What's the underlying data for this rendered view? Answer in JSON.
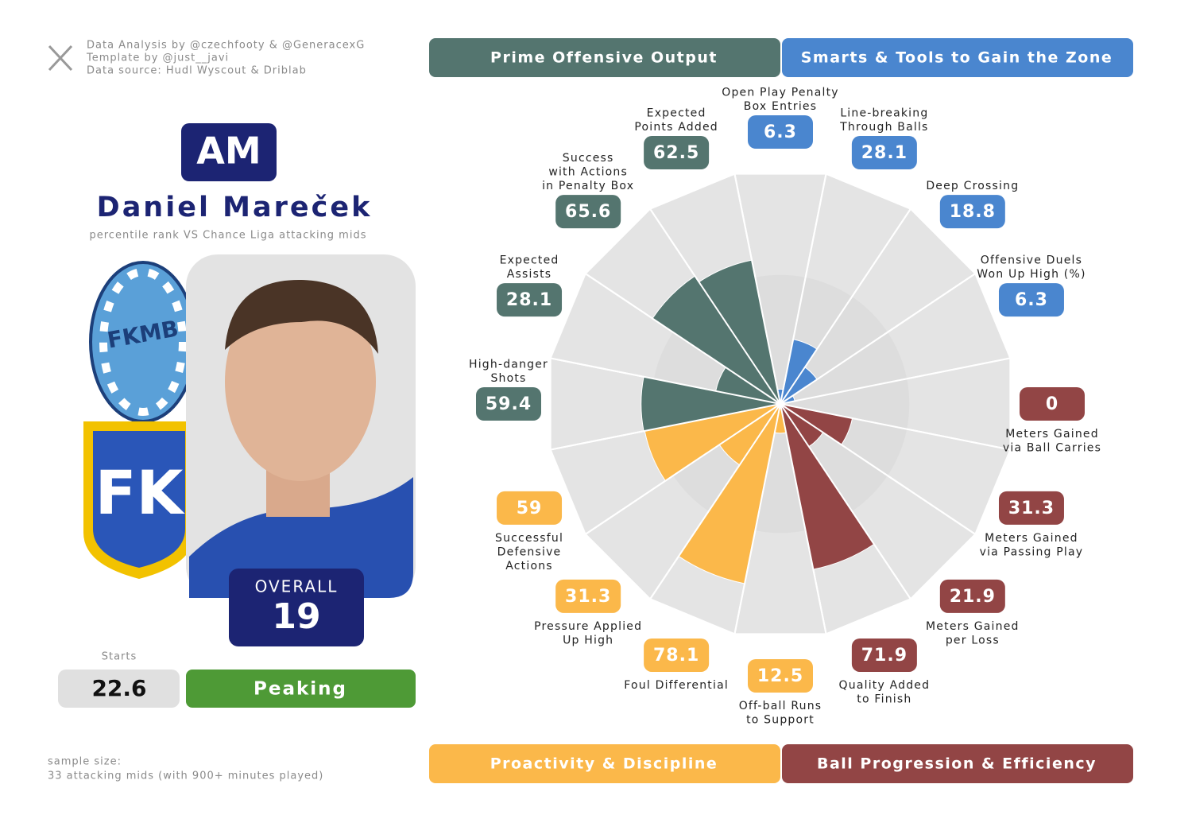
{
  "credits": [
    "Data Analysis by @czechfooty & @GeneracexG",
    "Template by @just__javi",
    "Data source: Hudl Wyscout & Driblab"
  ],
  "player": {
    "position": "AM",
    "name": "Daniel Mareček",
    "subtitle": "percentile rank VS Chance Liga attacking mids",
    "club_logos": [
      "FKMB",
      "FK"
    ],
    "overall_label": "OVERALL",
    "overall": 19,
    "starts_label": "Starts",
    "starts": 22.6,
    "form": "Peaking"
  },
  "sample_size": [
    "sample size:",
    "33 attacking mids (with 900+ minutes played)"
  ],
  "chart_data": {
    "type": "polar_bar",
    "groups": [
      {
        "name": "Prime Offensive Output",
        "color": "#54756f"
      },
      {
        "name": "Smarts & Tools to Gain the Zone",
        "color": "#4a86cf"
      },
      {
        "name": "Proactivity & Discipline",
        "color": "#fbb84a"
      },
      {
        "name": "Ball Progression & Efficiency",
        "color": "#924545"
      }
    ],
    "categories": [
      [
        "Open Play Penalty",
        "Box Entries"
      ],
      [
        "Line-breaking",
        "Through Balls"
      ],
      [
        "Deep Crossing"
      ],
      [
        "Offensive Duels",
        "Won Up High (%)"
      ],
      [
        "Meters Gained",
        "via Ball Carries"
      ],
      [
        "Meters Gained",
        "via Passing Play"
      ],
      [
        "Meters Gained",
        "per Loss"
      ],
      [
        "Quality Added",
        "to Finish"
      ],
      [
        "Off-ball Runs",
        "to Support"
      ],
      [
        "Foul Differential"
      ],
      [
        "Pressure Applied",
        "Up High"
      ],
      [
        "Successful",
        "Defensive",
        "Actions"
      ],
      [
        "High-danger",
        "Shots"
      ],
      [
        "Expected",
        "Assists"
      ],
      [
        "Success",
        "with Actions",
        "in Penalty Box"
      ],
      [
        "Expected",
        "Points Added"
      ]
    ],
    "values": [
      6.3,
      28.1,
      18.8,
      6.3,
      0,
      31.3,
      21.9,
      71.9,
      12.5,
      78.1,
      31.3,
      59,
      59.4,
      28.1,
      65.6,
      62.5
    ],
    "colors": [
      "#4a86cf",
      "#4a86cf",
      "#4a86cf",
      "#4a86cf",
      "#924545",
      "#924545",
      "#924545",
      "#924545",
      "#fbb84a",
      "#fbb84a",
      "#fbb84a",
      "#fbb84a",
      "#54756f",
      "#54756f",
      "#54756f",
      "#54756f"
    ],
    "rlim": [
      0,
      100
    ]
  }
}
